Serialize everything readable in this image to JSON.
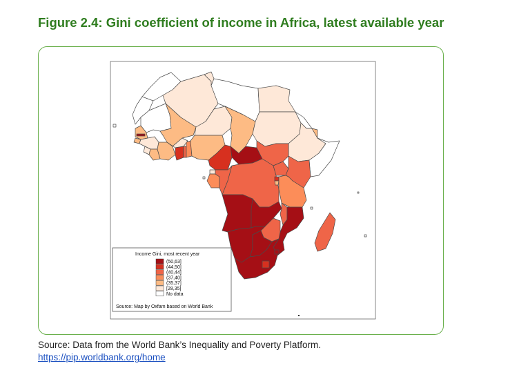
{
  "figure": {
    "title": "Figure 2.4: Gini coefficient of income in Africa, latest available year"
  },
  "legend": {
    "title": "Income Gini, most recent year",
    "items": [
      {
        "label": "(50,63]",
        "color": "#a50f15"
      },
      {
        "label": "(44,50]",
        "color": "#d7301f"
      },
      {
        "label": "(40,44]",
        "color": "#ef6548"
      },
      {
        "label": "(37,40]",
        "color": "#fc8d59"
      },
      {
        "label": "(35,37]",
        "color": "#fdbb84"
      },
      {
        "label": "[28,35]",
        "color": "#fee8d8"
      },
      {
        "label": "No data",
        "color": "#ffffff"
      }
    ],
    "source_note": "Source: Map by Oxfam based on World Bank"
  },
  "source": {
    "text": "Source: Data from the World Bank’s Inequality and Poverty Platform.",
    "link": "https://pip.worldbank.org/home"
  }
}
